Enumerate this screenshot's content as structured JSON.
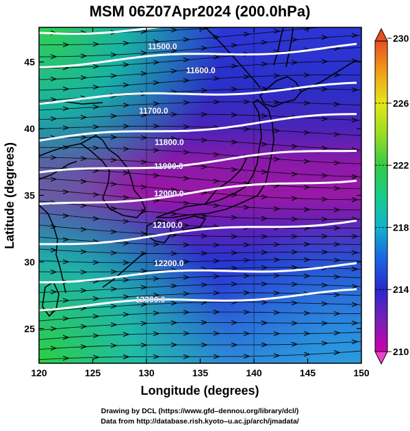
{
  "title": "MSM 06Z07Apr2024 (200.0hPa)",
  "xlabel": "Longitude (degrees)",
  "ylabel": "Latitude  (degrees)",
  "credits": [
    "Drawing by DCL (https://www.gfd–dennou.org/library/dcl/)",
    "Data from http://database.rish.kyoto–u.ac.jp/arch/jmadata/"
  ],
  "map": {
    "lon_range": [
      120,
      150
    ],
    "lat_range": [
      22.4,
      47.6
    ],
    "x_ticks": [
      "120",
      "125",
      "130",
      "135",
      "140",
      "145",
      "150"
    ],
    "y_ticks": [
      "25",
      "30",
      "35",
      "40",
      "45"
    ],
    "shading": "temperature (K)",
    "vectors": "wind streamlines, westerly"
  },
  "contours": [
    {
      "label": "11500.0"
    },
    {
      "label": "11600.0"
    },
    {
      "label": "11700.0"
    },
    {
      "label": "11800.0"
    },
    {
      "label": "11900.0"
    },
    {
      "label": "12000.0"
    },
    {
      "label": "12100.0"
    },
    {
      "label": "12200.0"
    },
    {
      "label": "12300.0"
    }
  ],
  "colorbar": {
    "min": 210,
    "max": 230,
    "tick_labels": [
      "230",
      "226",
      "222",
      "218",
      "214",
      "210"
    ],
    "colors": [
      "#cc00aa",
      "#7a1fb8",
      "#2b28cc",
      "#1a66e0",
      "#12b2cc",
      "#18cc8a",
      "#33cc44",
      "#99dd22",
      "#e6e619",
      "#f0a018",
      "#e65020",
      "#d82830"
    ]
  }
}
